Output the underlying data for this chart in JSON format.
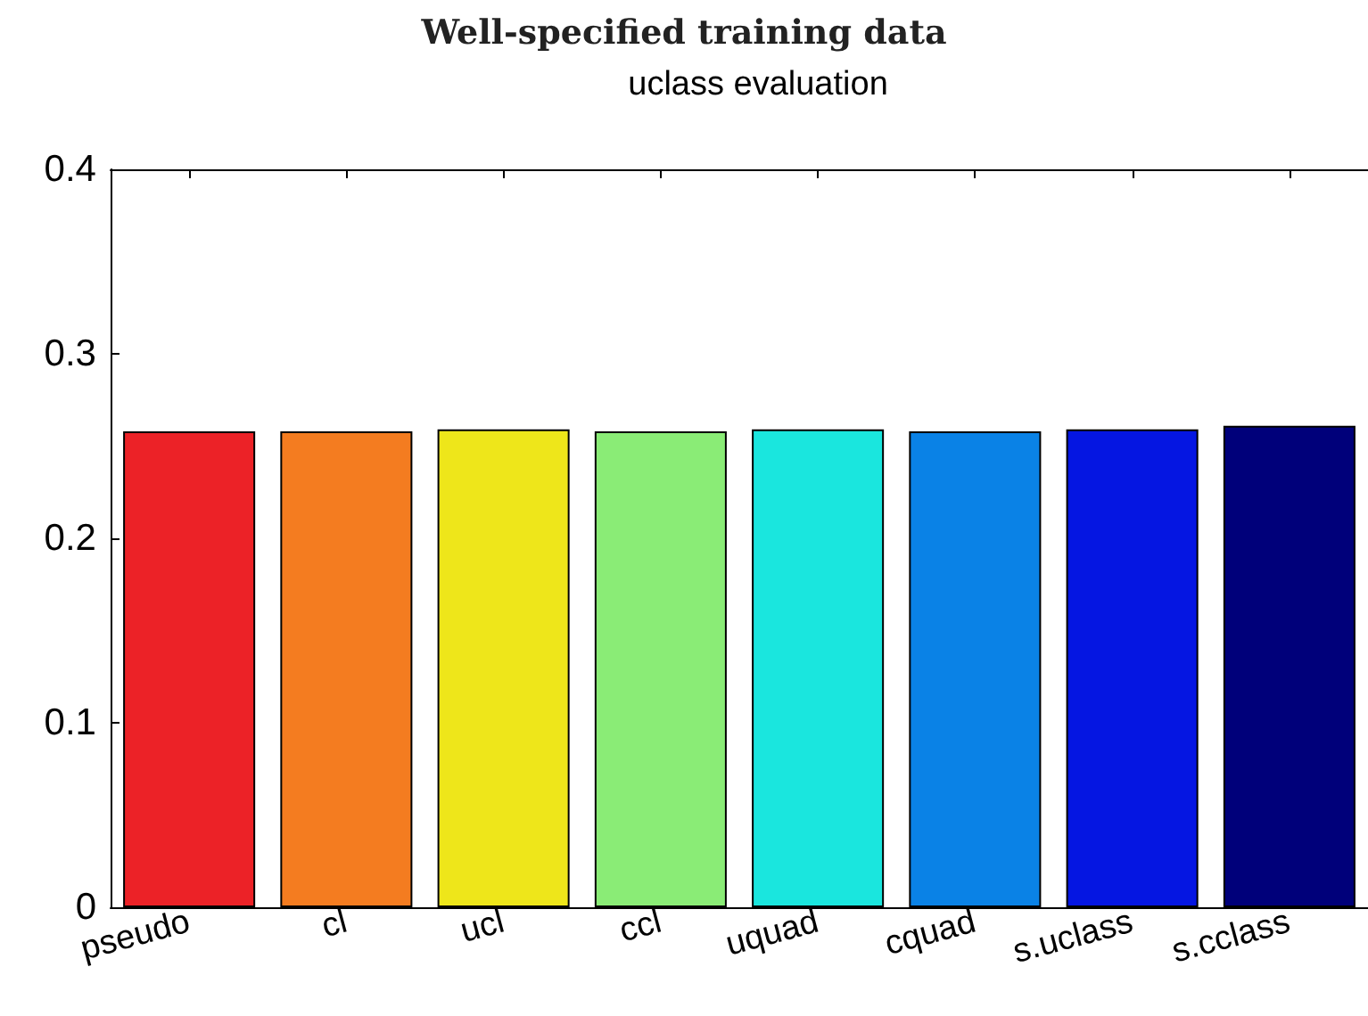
{
  "chart_data": {
    "type": "bar",
    "title": "Well-specified training data",
    "subtitle": "uclass evaluation",
    "categories": [
      "pseudo",
      "cl",
      "ucl",
      "ccl",
      "uquad",
      "cquad",
      "s.uclass",
      "s.cclass"
    ],
    "values": [
      0.258,
      0.258,
      0.259,
      0.258,
      0.259,
      0.258,
      0.259,
      0.261
    ],
    "colors": [
      "#ec2227",
      "#f47c20",
      "#eee61a",
      "#8aec76",
      "#1ae6de",
      "#0a82e6",
      "#0516e2",
      "#00007a"
    ],
    "ylim": [
      0,
      0.4
    ],
    "yticks": [
      0,
      0.1,
      0.2,
      0.3,
      0.4
    ],
    "grid": false
  }
}
